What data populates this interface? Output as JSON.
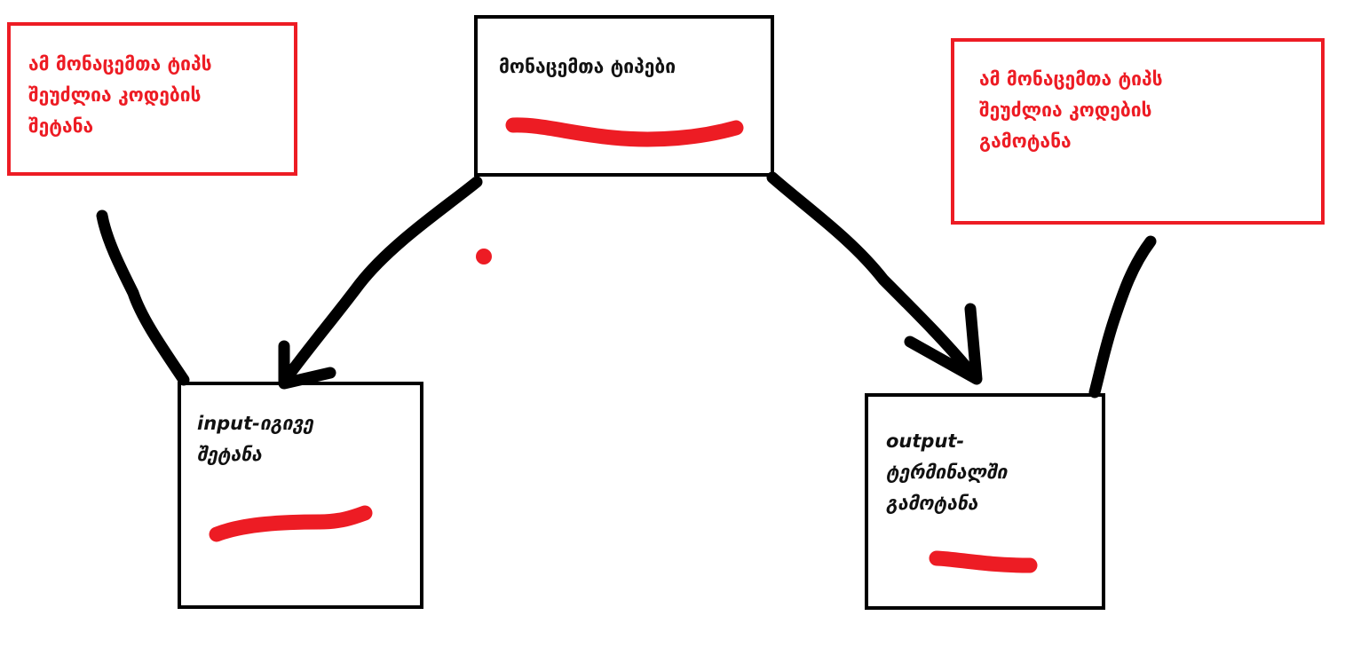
{
  "colors": {
    "stroke": "#000000",
    "accent": "#ed1c24"
  },
  "center_box": {
    "title": "მონაცემთა ტიპები"
  },
  "input_box": {
    "title": "input-იგივე\nშეტანა"
  },
  "output_box": {
    "title": "output-\nტერმინალში\nგამოტანა"
  },
  "note_left": {
    "text": "ამ მონაცემთა ტიპს\nშეუძლია კოდების\nშეტანა"
  },
  "note_right": {
    "text": "ამ მონაცემთა ტიპს\nშეუძლია კოდების\nგამოტანა"
  }
}
